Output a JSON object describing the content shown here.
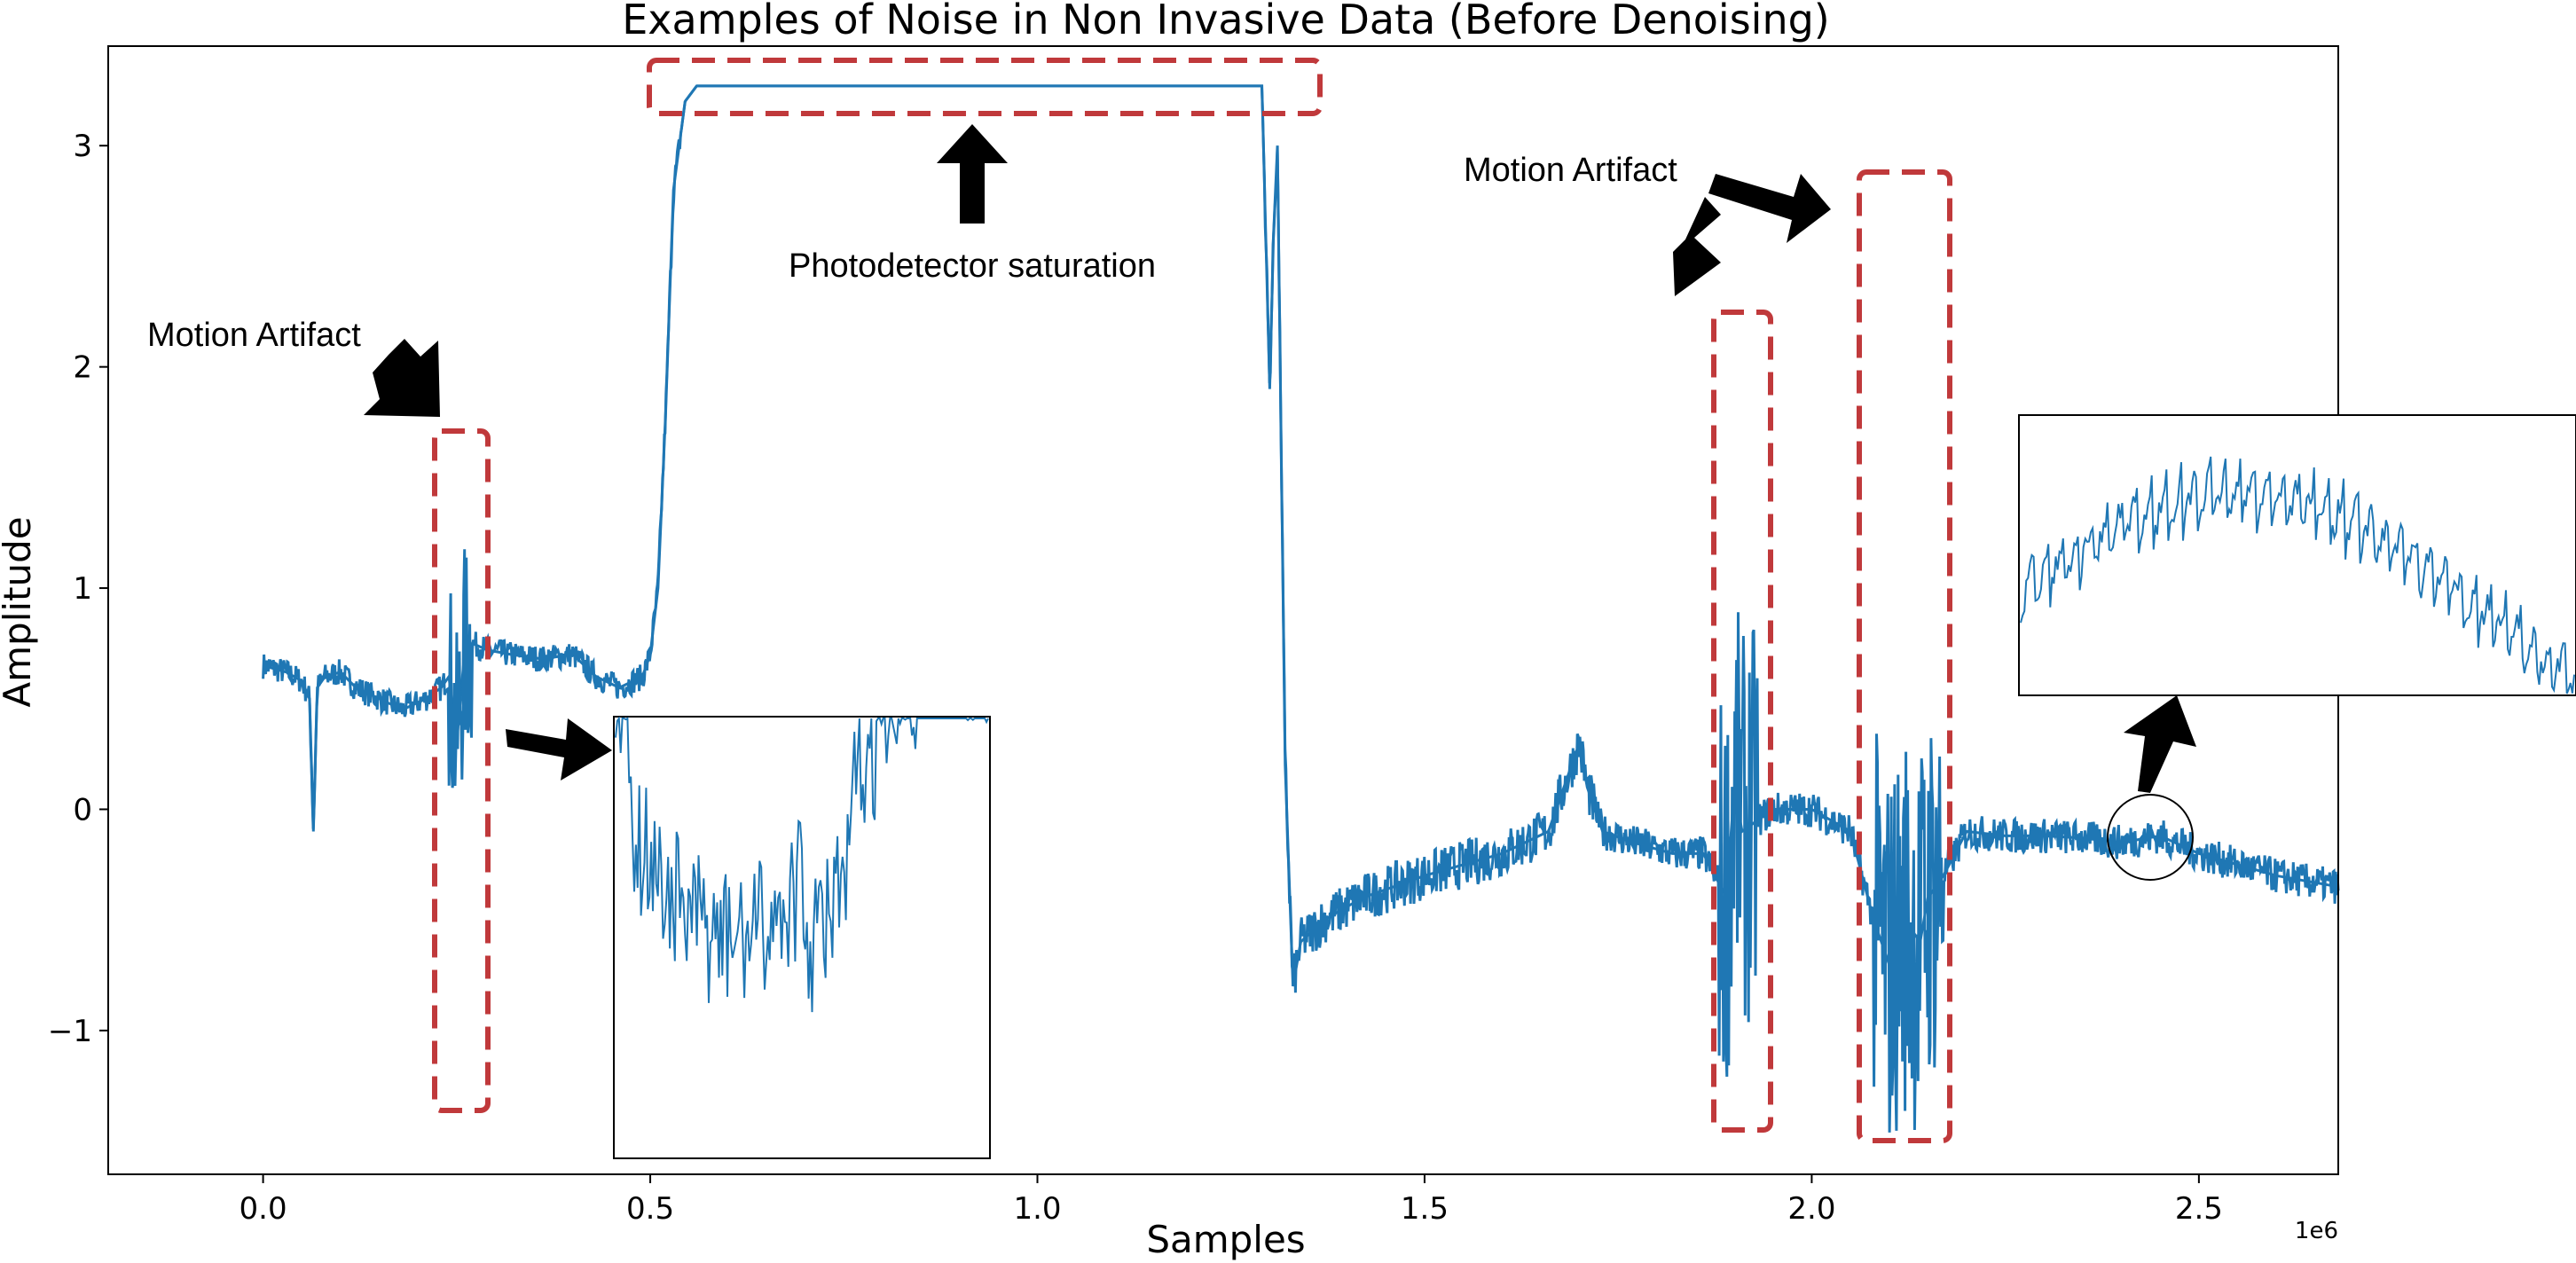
{
  "chart_data": {
    "type": "line",
    "title": "Examples of Noise in Non Invasive Data (Before Denoising)",
    "xlabel": "Samples",
    "ylabel": "Amplitude",
    "x_offset_label": "1e6",
    "xlim": [
      -0.2,
      2.68
    ],
    "ylim": [
      -1.65,
      3.45
    ],
    "xticks": [
      0.0,
      0.5,
      1.0,
      1.5,
      2.0,
      2.5
    ],
    "xtick_labels": [
      "0.0",
      "0.5",
      "1.0",
      "1.5",
      "2.0",
      "2.5"
    ],
    "yticks": [
      -1,
      0,
      1,
      2,
      3
    ],
    "ytick_labels": [
      "−1",
      "0",
      "1",
      "2",
      "3"
    ],
    "grid": false,
    "series": [
      {
        "color": "#1f77b4",
        "x": [
          0.0,
          0.03,
          0.05,
          0.06,
          0.065,
          0.07,
          0.08,
          0.1,
          0.12,
          0.15,
          0.18,
          0.21,
          0.23,
          0.24,
          0.25,
          0.26,
          0.27,
          0.29,
          0.32,
          0.36,
          0.4,
          0.43,
          0.46,
          0.49,
          0.5,
          0.51,
          0.52,
          0.53,
          0.545,
          0.56,
          0.6,
          0.8,
          1.0,
          1.2,
          1.29,
          1.3,
          1.305,
          1.31,
          1.32,
          1.33,
          1.34,
          1.37,
          1.42,
          1.5,
          1.6,
          1.66,
          1.68,
          1.7,
          1.71,
          1.73,
          1.77,
          1.82,
          1.86,
          1.89,
          1.9,
          1.91,
          1.93,
          1.95,
          2.0,
          2.05,
          2.08,
          2.1,
          2.12,
          2.14,
          2.15,
          2.17,
          2.2,
          2.25,
          2.3,
          2.35,
          2.4,
          2.45,
          2.5,
          2.55,
          2.6,
          2.68
        ],
        "y": [
          0.65,
          0.62,
          0.58,
          0.5,
          -0.1,
          0.55,
          0.6,
          0.62,
          0.55,
          0.5,
          0.45,
          0.5,
          0.55,
          0.6,
          0.3,
          0.7,
          0.75,
          0.72,
          0.7,
          0.68,
          0.7,
          0.6,
          0.55,
          0.6,
          0.7,
          1.0,
          1.8,
          2.8,
          3.2,
          3.27,
          3.27,
          3.27,
          3.27,
          3.27,
          3.27,
          1.9,
          2.6,
          3.0,
          0.2,
          -0.8,
          -0.6,
          -0.5,
          -0.4,
          -0.3,
          -0.2,
          -0.1,
          0.1,
          0.3,
          0.1,
          -0.1,
          -0.15,
          -0.2,
          -0.2,
          -0.4,
          0.1,
          -0.1,
          -0.05,
          0.0,
          0.0,
          -0.1,
          -0.5,
          -0.7,
          -0.5,
          -0.6,
          -0.4,
          -0.3,
          -0.1,
          -0.12,
          -0.12,
          -0.13,
          -0.15,
          -0.12,
          -0.2,
          -0.25,
          -0.3,
          -0.35
        ]
      }
    ],
    "annotations": [
      {
        "text": "Motion Artifact",
        "region": "x 0.22–0.29"
      },
      {
        "text": "Photodetector saturation",
        "region": "x 0.50–1.37, y ≈ 3.27"
      },
      {
        "text": "Motion Artifact",
        "region": "x 1.86–1.93 and x 2.06–2.18"
      }
    ]
  }
}
